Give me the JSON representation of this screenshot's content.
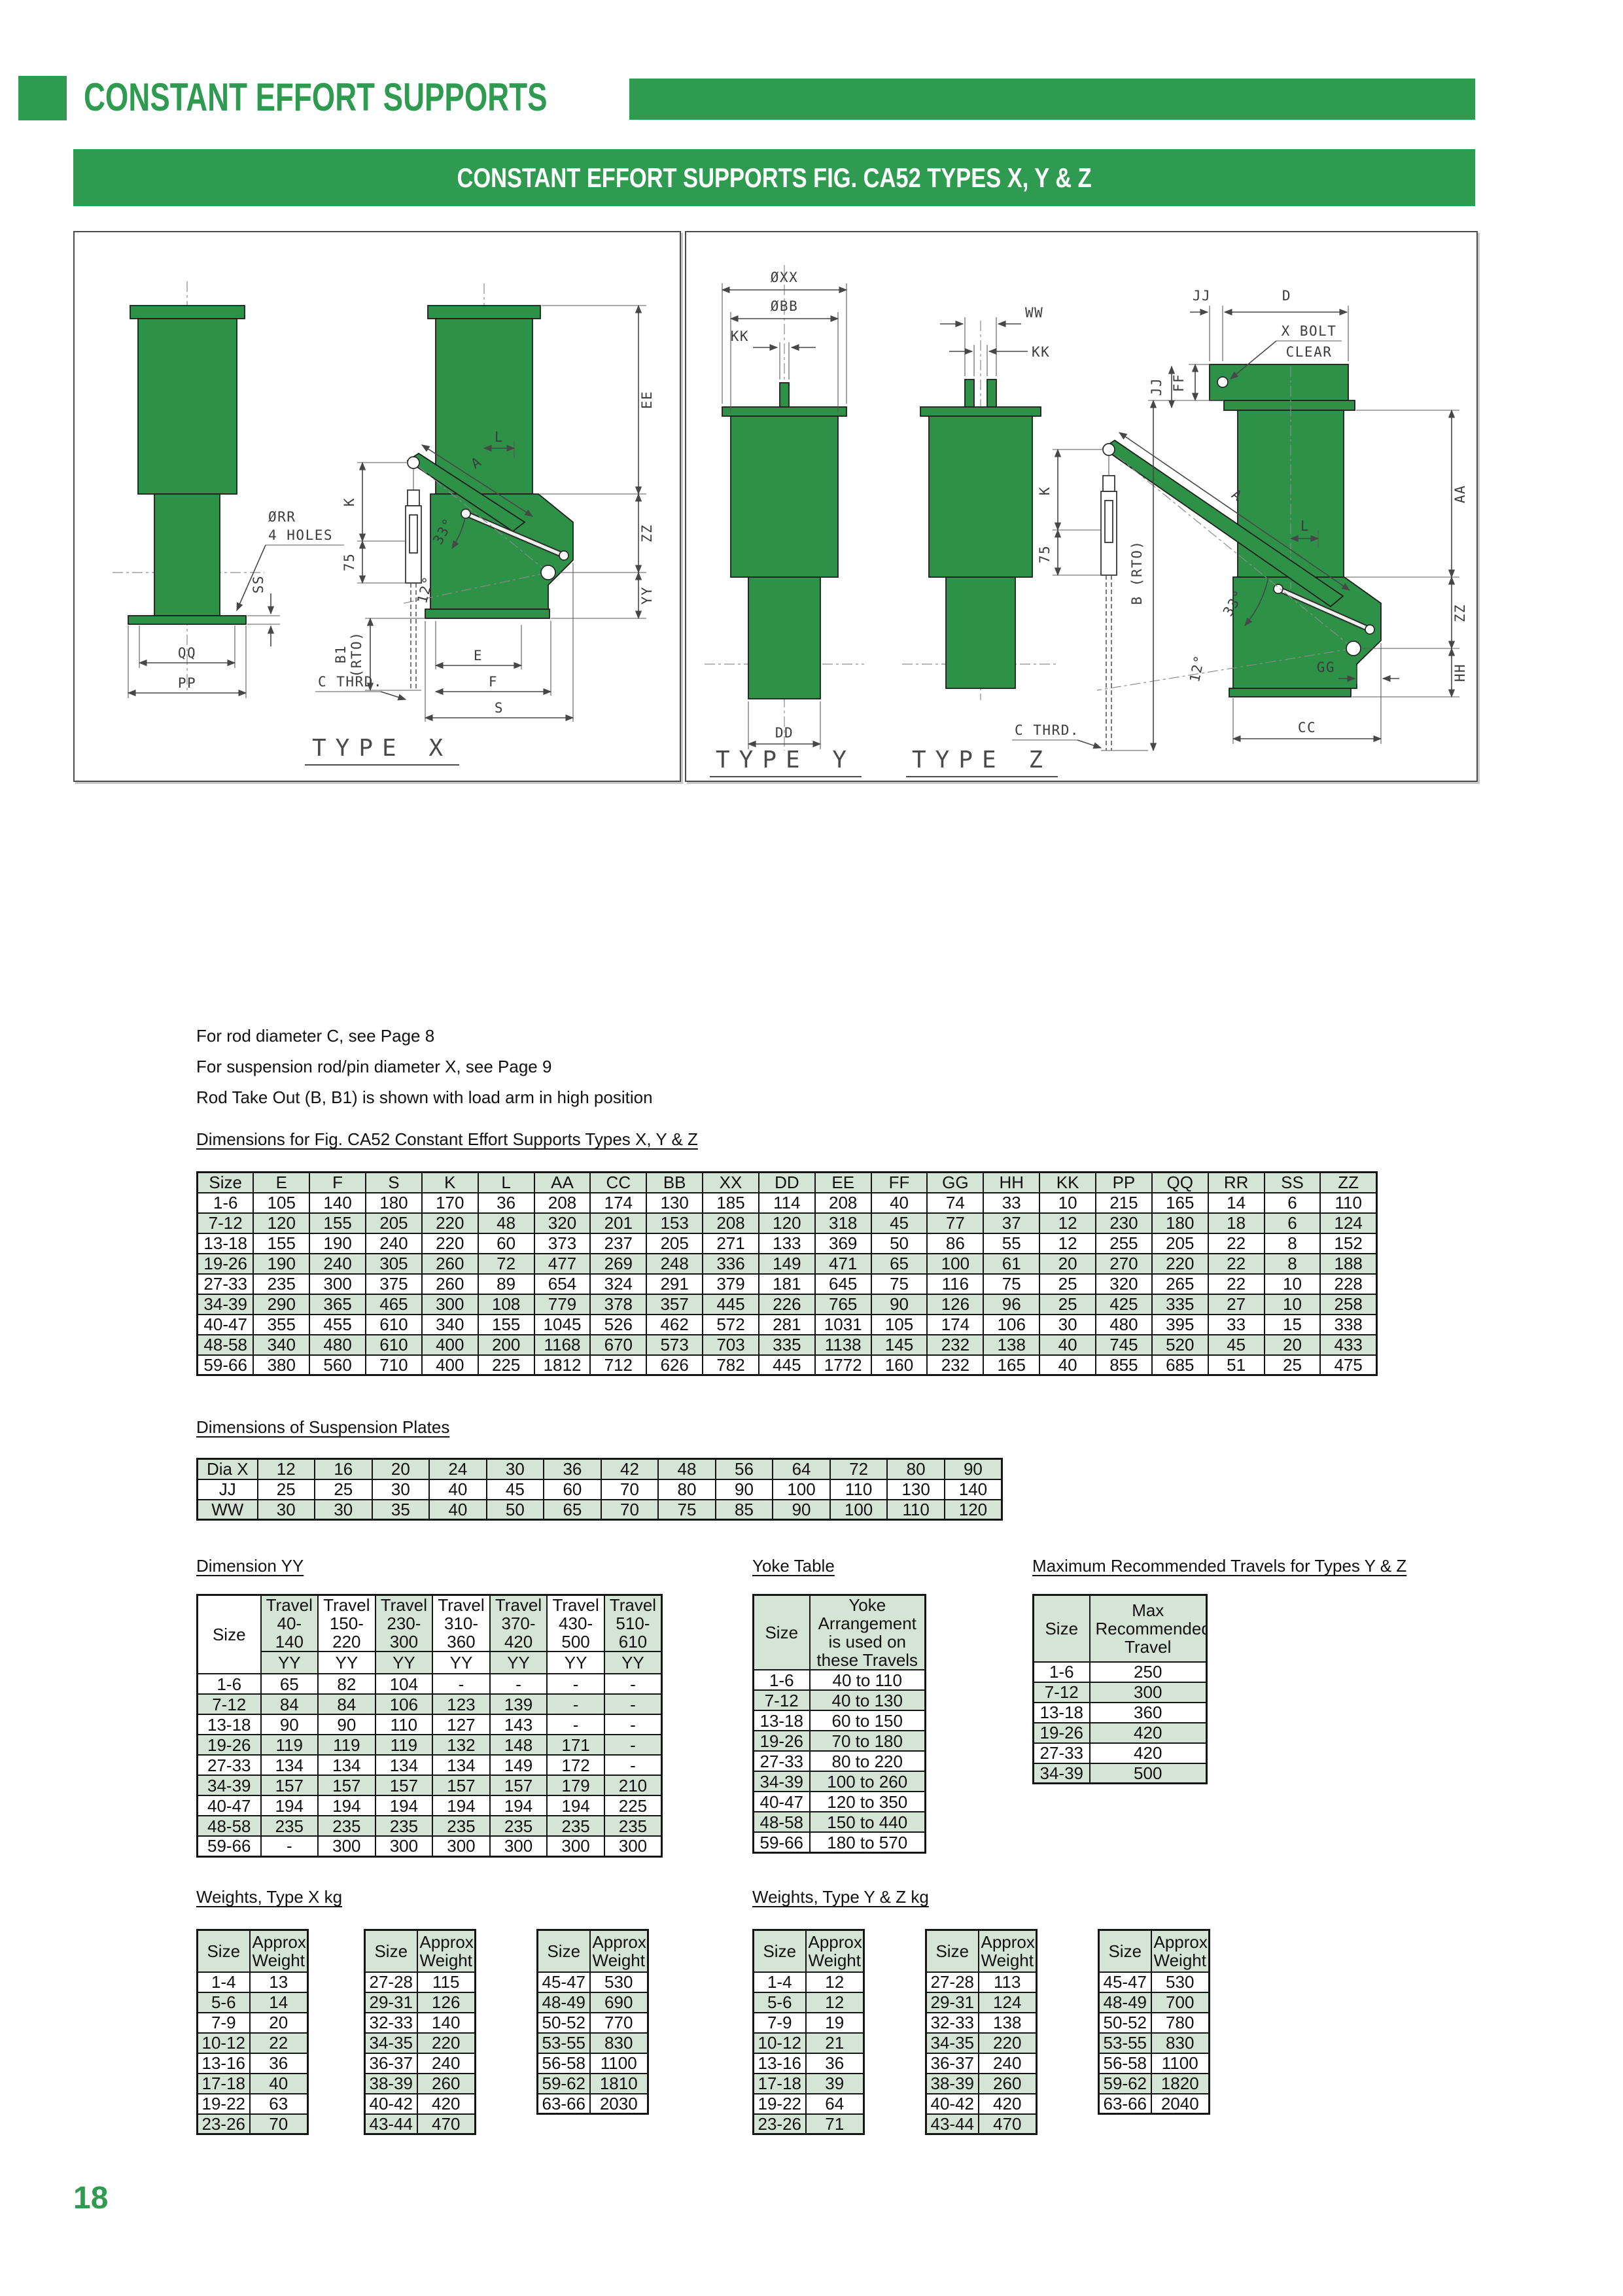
{
  "header": {
    "title": "CONSTANT EFFORT SUPPORTS",
    "banner": "CONSTANT EFFORT SUPPORTS FIG. CA52 TYPES X, Y & Z"
  },
  "footer": {
    "page_number": "18"
  },
  "colors": {
    "accent_green": "#2f9b50",
    "drawing_green": "#2e9148",
    "table_green": "#d6e4d8"
  },
  "notes": [
    "For rod diameter C, see Page 8",
    "For suspension rod/pin diameter X, see Page 9",
    "Rod Take Out (B, B1) is shown with load arm in high position"
  ],
  "sections": {
    "dims_heading": "Dimensions for Fig. CA52 Constant Effort Supports Types X, Y & Z",
    "suspension_heading": "Dimensions of Suspension Plates",
    "yy_heading": "Dimension YY",
    "yoke_heading": "Yoke Table",
    "max_heading": "Maximum Recommended Travels for Types Y & Z",
    "weights_x_heading": "Weights, Type X kg",
    "weights_yz_heading": "Weights, Type Y & Z kg"
  },
  "drawings": {
    "labels": {
      "orr": "ØRR",
      "holes": "4 HOLES",
      "ss": "SS",
      "qq": "QQ",
      "pp": "PP",
      "k": "K",
      "n75": "75",
      "b1": "B1",
      "rto": "(RTO)",
      "c_thrd": "C THRD.",
      "deg33": "33°",
      "deg12": "12°",
      "a": "A",
      "l": "L",
      "ee": "EE",
      "zz": "ZZ",
      "yy": "YY",
      "e": "E",
      "f": "F",
      "s": "S",
      "type_x": "TYPE X",
      "oxx": "ØXX",
      "obb": "ØBB",
      "kk": "KK",
      "dd": "DD",
      "type_y": "TYPE Y",
      "ww": "WW",
      "type_z": "TYPE Z",
      "jj": "JJ",
      "d": "D",
      "ff": "FF",
      "x_bolt": "X BOLT",
      "clear": "CLEAR",
      "b_rto": "B (RTO)",
      "aa": "AA",
      "gg": "GG",
      "hh": "HH",
      "cc": "CC"
    }
  },
  "main_table": {
    "columns": [
      "Size",
      "E",
      "F",
      "S",
      "K",
      "L",
      "AA",
      "CC",
      "BB",
      "XX",
      "DD",
      "EE",
      "FF",
      "GG",
      "HH",
      "KK",
      "PP",
      "QQ",
      "RR",
      "SS",
      "ZZ"
    ],
    "rows": [
      [
        "1-6",
        "105",
        "140",
        "180",
        "170",
        "36",
        "208",
        "174",
        "130",
        "185",
        "114",
        "208",
        "40",
        "74",
        "33",
        "10",
        "215",
        "165",
        "14",
        "6",
        "110"
      ],
      [
        "7-12",
        "120",
        "155",
        "205",
        "220",
        "48",
        "320",
        "201",
        "153",
        "208",
        "120",
        "318",
        "45",
        "77",
        "37",
        "12",
        "230",
        "180",
        "18",
        "6",
        "124"
      ],
      [
        "13-18",
        "155",
        "190",
        "240",
        "220",
        "60",
        "373",
        "237",
        "205",
        "271",
        "133",
        "369",
        "50",
        "86",
        "55",
        "12",
        "255",
        "205",
        "22",
        "8",
        "152"
      ],
      [
        "19-26",
        "190",
        "240",
        "305",
        "260",
        "72",
        "477",
        "269",
        "248",
        "336",
        "149",
        "471",
        "65",
        "100",
        "61",
        "20",
        "270",
        "220",
        "22",
        "8",
        "188"
      ],
      [
        "27-33",
        "235",
        "300",
        "375",
        "260",
        "89",
        "654",
        "324",
        "291",
        "379",
        "181",
        "645",
        "75",
        "116",
        "75",
        "25",
        "320",
        "265",
        "22",
        "10",
        "228"
      ],
      [
        "34-39",
        "290",
        "365",
        "465",
        "300",
        "108",
        "779",
        "378",
        "357",
        "445",
        "226",
        "765",
        "90",
        "126",
        "96",
        "25",
        "425",
        "335",
        "27",
        "10",
        "258"
      ],
      [
        "40-47",
        "355",
        "455",
        "610",
        "340",
        "155",
        "1045",
        "526",
        "462",
        "572",
        "281",
        "1031",
        "105",
        "174",
        "106",
        "30",
        "480",
        "395",
        "33",
        "15",
        "338"
      ],
      [
        "48-58",
        "340",
        "480",
        "610",
        "400",
        "200",
        "1168",
        "670",
        "573",
        "703",
        "335",
        "1138",
        "145",
        "232",
        "138",
        "40",
        "745",
        "520",
        "45",
        "20",
        "433"
      ],
      [
        "59-66",
        "380",
        "560",
        "710",
        "400",
        "225",
        "1812",
        "712",
        "626",
        "782",
        "445",
        "1772",
        "160",
        "232",
        "165",
        "40",
        "855",
        "685",
        "51",
        "25",
        "475"
      ]
    ]
  },
  "suspension_table": {
    "rows": [
      [
        "Dia X",
        "12",
        "16",
        "20",
        "24",
        "30",
        "36",
        "42",
        "48",
        "56",
        "64",
        "72",
        "80",
        "90"
      ],
      [
        "JJ",
        "25",
        "25",
        "30",
        "40",
        "45",
        "60",
        "70",
        "80",
        "90",
        "100",
        "110",
        "130",
        "140"
      ],
      [
        "WW",
        "30",
        "30",
        "35",
        "40",
        "50",
        "65",
        "70",
        "75",
        "85",
        "90",
        "100",
        "110",
        "120"
      ]
    ]
  },
  "yy_table": {
    "size_label": "Size",
    "subheader": "YY",
    "col_headers": [
      "Travel 40-140",
      "Travel 150-220",
      "Travel 230-300",
      "Travel 310-360",
      "Travel 370-420",
      "Travel 430-500",
      "Travel 510-610"
    ],
    "rows": [
      [
        "1-6",
        "65",
        "82",
        "104",
        "-",
        "-",
        "-",
        "-"
      ],
      [
        "7-12",
        "84",
        "84",
        "106",
        "123",
        "139",
        "-",
        "-"
      ],
      [
        "13-18",
        "90",
        "90",
        "110",
        "127",
        "143",
        "-",
        "-"
      ],
      [
        "19-26",
        "119",
        "119",
        "119",
        "132",
        "148",
        "171",
        "-"
      ],
      [
        "27-33",
        "134",
        "134",
        "134",
        "134",
        "149",
        "172",
        "-"
      ],
      [
        "34-39",
        "157",
        "157",
        "157",
        "157",
        "157",
        "179",
        "210"
      ],
      [
        "40-47",
        "194",
        "194",
        "194",
        "194",
        "194",
        "194",
        "225"
      ],
      [
        "48-58",
        "235",
        "235",
        "235",
        "235",
        "235",
        "235",
        "235"
      ],
      [
        "59-66",
        "-",
        "300",
        "300",
        "300",
        "300",
        "300",
        "300"
      ]
    ]
  },
  "yoke_table": {
    "col1": "Size",
    "col2": "Yoke Arrangement is used on these Travels",
    "rows": [
      [
        "1-6",
        "40 to 110"
      ],
      [
        "7-12",
        "40 to 130"
      ],
      [
        "13-18",
        "60 to 150"
      ],
      [
        "19-26",
        "70 to 180"
      ],
      [
        "27-33",
        "80 to 220"
      ],
      [
        "34-39",
        "100 to 260"
      ],
      [
        "40-47",
        "120 to 350"
      ],
      [
        "48-58",
        "150 to 440"
      ],
      [
        "59-66",
        "180 to 570"
      ]
    ]
  },
  "max_table": {
    "col1": "Size",
    "col2": "Max Recommended Travel",
    "rows": [
      [
        "1-6",
        "250"
      ],
      [
        "7-12",
        "300"
      ],
      [
        "13-18",
        "360"
      ],
      [
        "19-26",
        "420"
      ],
      [
        "27-33",
        "420"
      ],
      [
        "34-39",
        "500"
      ]
    ]
  },
  "weights_x": {
    "col1": "Size",
    "col2": "Approx Weight",
    "tables": [
      [
        [
          "1-4",
          "13"
        ],
        [
          "5-6",
          "14"
        ],
        [
          "7-9",
          "20"
        ],
        [
          "10-12",
          "22"
        ],
        [
          "13-16",
          "36"
        ],
        [
          "17-18",
          "40"
        ],
        [
          "19-22",
          "63"
        ],
        [
          "23-26",
          "70"
        ]
      ],
      [
        [
          "27-28",
          "115"
        ],
        [
          "29-31",
          "126"
        ],
        [
          "32-33",
          "140"
        ],
        [
          "34-35",
          "220"
        ],
        [
          "36-37",
          "240"
        ],
        [
          "38-39",
          "260"
        ],
        [
          "40-42",
          "420"
        ],
        [
          "43-44",
          "470"
        ]
      ],
      [
        [
          "45-47",
          "530"
        ],
        [
          "48-49",
          "690"
        ],
        [
          "50-52",
          "770"
        ],
        [
          "53-55",
          "830"
        ],
        [
          "56-58",
          "1100"
        ],
        [
          "59-62",
          "1810"
        ],
        [
          "63-66",
          "2030"
        ]
      ]
    ]
  },
  "weights_yz": {
    "col1": "Size",
    "col2": "Approx Weight",
    "tables": [
      [
        [
          "1-4",
          "12"
        ],
        [
          "5-6",
          "12"
        ],
        [
          "7-9",
          "19"
        ],
        [
          "10-12",
          "21"
        ],
        [
          "13-16",
          "36"
        ],
        [
          "17-18",
          "39"
        ],
        [
          "19-22",
          "64"
        ],
        [
          "23-26",
          "71"
        ]
      ],
      [
        [
          "27-28",
          "113"
        ],
        [
          "29-31",
          "124"
        ],
        [
          "32-33",
          "138"
        ],
        [
          "34-35",
          "220"
        ],
        [
          "36-37",
          "240"
        ],
        [
          "38-39",
          "260"
        ],
        [
          "40-42",
          "420"
        ],
        [
          "43-44",
          "470"
        ]
      ],
      [
        [
          "45-47",
          "530"
        ],
        [
          "48-49",
          "700"
        ],
        [
          "50-52",
          "780"
        ],
        [
          "53-55",
          "830"
        ],
        [
          "56-58",
          "1100"
        ],
        [
          "59-62",
          "1820"
        ],
        [
          "63-66",
          "2040"
        ]
      ]
    ]
  }
}
